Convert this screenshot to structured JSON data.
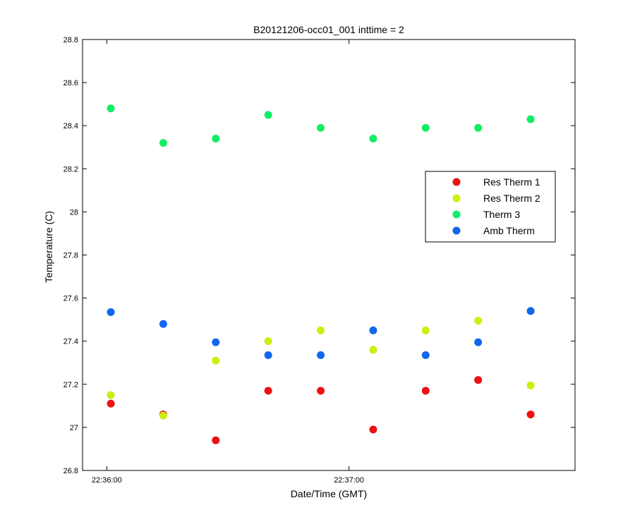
{
  "chart_data": {
    "type": "scatter",
    "title": "B20121206-occ01_001 inttime = 2",
    "xlabel": "Date/Time (GMT)",
    "ylabel": "Temperature (C)",
    "x_tick_labels": [
      "22:36:00",
      "22:37:00"
    ],
    "x_tick_values": [
      "22:36:00",
      "22:37:00"
    ],
    "x_range": [
      "22:35:54",
      "22:37:56"
    ],
    "ylim": [
      26.8,
      28.8
    ],
    "y_ticks": [
      26.8,
      27,
      27.2,
      27.4,
      27.6,
      27.8,
      28,
      28.2,
      28.4,
      28.6,
      28.8
    ],
    "y_tick_labels": [
      "26.8",
      "27",
      "27.2",
      "27.4",
      "27.6",
      "27.8",
      "28",
      "28.2",
      "28.4",
      "28.6",
      "28.8"
    ],
    "grid": false,
    "legend_position": "right",
    "x": [
      "22:36:01",
      "22:36:14",
      "22:36:27",
      "22:36:40",
      "22:36:53",
      "22:37:06",
      "22:37:19",
      "22:37:32",
      "22:37:45"
    ],
    "series": [
      {
        "name": "Res Therm 1",
        "color": "#ee1111",
        "values": [
          27.11,
          27.06,
          26.94,
          27.17,
          27.17,
          26.99,
          27.17,
          27.22,
          27.06
        ]
      },
      {
        "name": "Res Therm 2",
        "color": "#ccee11",
        "values": [
          27.15,
          27.055,
          27.31,
          27.4,
          27.45,
          27.36,
          27.45,
          27.495,
          27.195
        ]
      },
      {
        "name": "Therm 3",
        "color": "#11ee66",
        "values": [
          28.48,
          28.32,
          28.34,
          28.45,
          28.39,
          28.34,
          28.39,
          28.39,
          28.43
        ]
      },
      {
        "name": "Amb Therm",
        "color": "#1166ee",
        "values": [
          27.535,
          27.48,
          27.395,
          27.335,
          27.335,
          27.45,
          27.335,
          27.395,
          27.54
        ]
      }
    ]
  }
}
